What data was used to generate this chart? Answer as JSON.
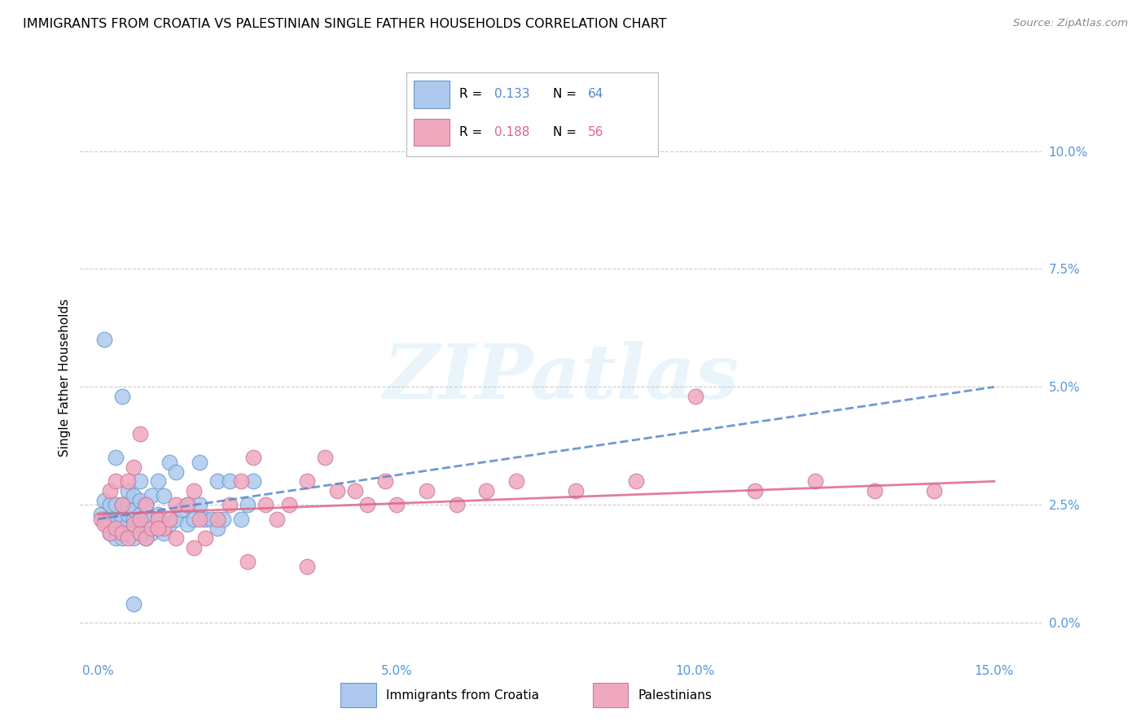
{
  "title": "IMMIGRANTS FROM CROATIA VS PALESTINIAN SINGLE FATHER HOUSEHOLDS CORRELATION CHART",
  "source": "Source: ZipAtlas.com",
  "xlabel_ticks": [
    "0.0%",
    "5.0%",
    "10.0%",
    "15.0%"
  ],
  "xlabel_tick_vals": [
    0.0,
    0.05,
    0.1,
    0.15
  ],
  "ylabel_ticks": [
    "0.0%",
    "2.5%",
    "5.0%",
    "7.5%",
    "10.0%"
  ],
  "ylabel_tick_vals": [
    0.0,
    0.025,
    0.05,
    0.075,
    0.1
  ],
  "xlim": [
    -0.003,
    0.158
  ],
  "ylim": [
    -0.008,
    0.112
  ],
  "watermark_text": "ZIPatlas",
  "ylabel": "Single Father Households",
  "croatia_color": "#aec9ed",
  "croatia_edge_color": "#6699cc",
  "palestinian_color": "#f0a8bf",
  "palestinian_edge_color": "#cc7799",
  "trendline_croatia_color": "#5588cc",
  "trendline_palestinian_color": "#dd6688",
  "axis_tick_color": "#5599dd",
  "grid_color": "#cccccc",
  "title_fontsize": 11.5,
  "axis_label_fontsize": 11,
  "tick_fontsize": 11,
  "source_fontsize": 9.5,
  "legend_r1": "0.133",
  "legend_n1": "64",
  "legend_r2": "0.188",
  "legend_n2": "56",
  "croatia_x": [
    0.0005,
    0.001,
    0.001,
    0.0015,
    0.002,
    0.002,
    0.002,
    0.003,
    0.003,
    0.003,
    0.003,
    0.004,
    0.004,
    0.004,
    0.004,
    0.005,
    0.005,
    0.005,
    0.005,
    0.005,
    0.006,
    0.006,
    0.006,
    0.006,
    0.006,
    0.007,
    0.007,
    0.007,
    0.007,
    0.007,
    0.008,
    0.008,
    0.008,
    0.009,
    0.009,
    0.009,
    0.01,
    0.01,
    0.01,
    0.011,
    0.011,
    0.012,
    0.012,
    0.013,
    0.013,
    0.014,
    0.015,
    0.015,
    0.016,
    0.017,
    0.017,
    0.018,
    0.019,
    0.02,
    0.02,
    0.021,
    0.022,
    0.024,
    0.025,
    0.026,
    0.003,
    0.004,
    0.001,
    0.006
  ],
  "croatia_y": [
    0.023,
    0.022,
    0.026,
    0.021,
    0.019,
    0.022,
    0.025,
    0.018,
    0.02,
    0.022,
    0.025,
    0.018,
    0.02,
    0.022,
    0.025,
    0.019,
    0.021,
    0.023,
    0.025,
    0.028,
    0.018,
    0.02,
    0.022,
    0.024,
    0.027,
    0.019,
    0.021,
    0.023,
    0.026,
    0.03,
    0.018,
    0.021,
    0.025,
    0.019,
    0.022,
    0.027,
    0.02,
    0.023,
    0.03,
    0.019,
    0.027,
    0.021,
    0.034,
    0.022,
    0.032,
    0.024,
    0.021,
    0.025,
    0.022,
    0.025,
    0.034,
    0.022,
    0.022,
    0.02,
    0.03,
    0.022,
    0.03,
    0.022,
    0.025,
    0.03,
    0.035,
    0.048,
    0.06,
    0.004
  ],
  "palestinian_x": [
    0.0005,
    0.001,
    0.002,
    0.002,
    0.003,
    0.003,
    0.004,
    0.004,
    0.005,
    0.005,
    0.006,
    0.006,
    0.007,
    0.007,
    0.008,
    0.008,
    0.009,
    0.01,
    0.011,
    0.012,
    0.013,
    0.015,
    0.016,
    0.017,
    0.018,
    0.02,
    0.022,
    0.024,
    0.026,
    0.028,
    0.03,
    0.032,
    0.035,
    0.038,
    0.04,
    0.043,
    0.045,
    0.048,
    0.05,
    0.055,
    0.06,
    0.065,
    0.07,
    0.08,
    0.09,
    0.1,
    0.11,
    0.12,
    0.13,
    0.14,
    0.007,
    0.01,
    0.013,
    0.016,
    0.025,
    0.035
  ],
  "palestinian_y": [
    0.022,
    0.021,
    0.019,
    0.028,
    0.02,
    0.03,
    0.019,
    0.025,
    0.018,
    0.03,
    0.021,
    0.033,
    0.019,
    0.022,
    0.018,
    0.025,
    0.02,
    0.022,
    0.02,
    0.022,
    0.025,
    0.025,
    0.028,
    0.022,
    0.018,
    0.022,
    0.025,
    0.03,
    0.035,
    0.025,
    0.022,
    0.025,
    0.03,
    0.035,
    0.028,
    0.028,
    0.025,
    0.03,
    0.025,
    0.028,
    0.025,
    0.028,
    0.03,
    0.028,
    0.03,
    0.048,
    0.028,
    0.03,
    0.028,
    0.028,
    0.04,
    0.02,
    0.018,
    0.016,
    0.013,
    0.012
  ]
}
